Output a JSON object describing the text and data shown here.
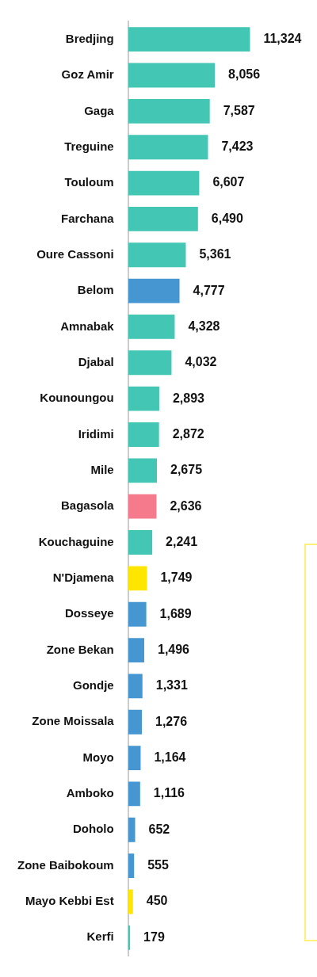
{
  "chart_data": {
    "type": "bar",
    "orientation": "horizontal",
    "categories": [
      "Bredjing",
      "Goz Amir",
      "Gaga",
      "Treguine",
      "Touloum",
      "Farchana",
      "Oure Cassoni",
      "Belom",
      "Amnabak",
      "Djabal",
      "Kounoungou",
      "Iridimi",
      "Mile",
      "Bagasola",
      "Kouchaguine",
      "N'Djamena",
      "Dosseye",
      "Zone Bekan",
      "Gondje",
      "Zone Moissala",
      "Moyo",
      "Amboko",
      "Doholo",
      "Zone Baibokoum",
      "Mayo Kebbi Est",
      "Kerfi"
    ],
    "values": [
      11324,
      8056,
      7587,
      7423,
      6607,
      6490,
      5361,
      4777,
      4328,
      4032,
      2893,
      2872,
      2675,
      2636,
      2241,
      1749,
      1689,
      1496,
      1331,
      1276,
      1164,
      1116,
      652,
      555,
      450,
      179
    ],
    "value_labels": [
      "11,324",
      "8,056",
      "7,587",
      "7,423",
      "6,607",
      "6,490",
      "5,361",
      "4,777",
      "4,328",
      "4,032",
      "2,893",
      "2,872",
      "2,675",
      "2,636",
      "2,241",
      "1,749",
      "1,689",
      "1,496",
      "1,331",
      "1,276",
      "1,164",
      "1,116",
      "652",
      "555",
      "450",
      "179"
    ],
    "colors": [
      "#43c6b4",
      "#43c6b4",
      "#43c6b4",
      "#43c6b4",
      "#43c6b4",
      "#43c6b4",
      "#43c6b4",
      "#4596d1",
      "#43c6b4",
      "#43c6b4",
      "#43c6b4",
      "#43c6b4",
      "#43c6b4",
      "#f47a8c",
      "#43c6b4",
      "#ffe600",
      "#4596d1",
      "#4596d1",
      "#4596d1",
      "#4596d1",
      "#4596d1",
      "#4596d1",
      "#4596d1",
      "#4596d1",
      "#ffe600",
      "#43c6b4"
    ]
  }
}
